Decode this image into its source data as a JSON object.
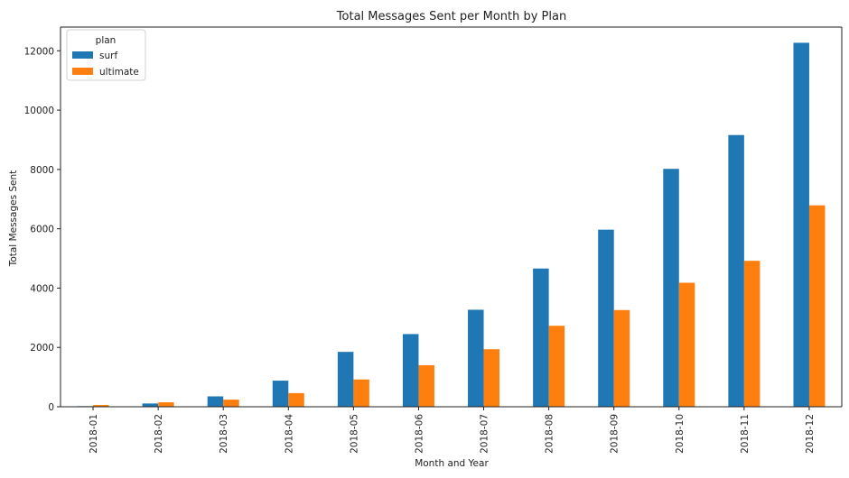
{
  "chart_data": {
    "type": "bar",
    "title": "Total Messages Sent per Month by Plan",
    "xlabel": "Month and Year",
    "ylabel": "Total Messages Sent",
    "ylim": [
      0,
      12800
    ],
    "yticks": [
      0,
      2000,
      4000,
      6000,
      8000,
      10000,
      12000
    ],
    "categories": [
      "2018-01",
      "2018-02",
      "2018-03",
      "2018-04",
      "2018-05",
      "2018-06",
      "2018-07",
      "2018-08",
      "2018-09",
      "2018-10",
      "2018-11",
      "2018-12"
    ],
    "legend_title": "plan",
    "legend_position": "top-left",
    "grid": false,
    "series": [
      {
        "name": "surf",
        "color": "#1f77b4",
        "values": [
          20,
          110,
          350,
          880,
          1850,
          2450,
          3270,
          4660,
          5970,
          8020,
          9160,
          12270
        ]
      },
      {
        "name": "ultimate",
        "color": "#ff7f0e",
        "values": [
          60,
          150,
          240,
          460,
          920,
          1400,
          1940,
          2730,
          3260,
          4180,
          4920,
          6790
        ]
      }
    ]
  }
}
